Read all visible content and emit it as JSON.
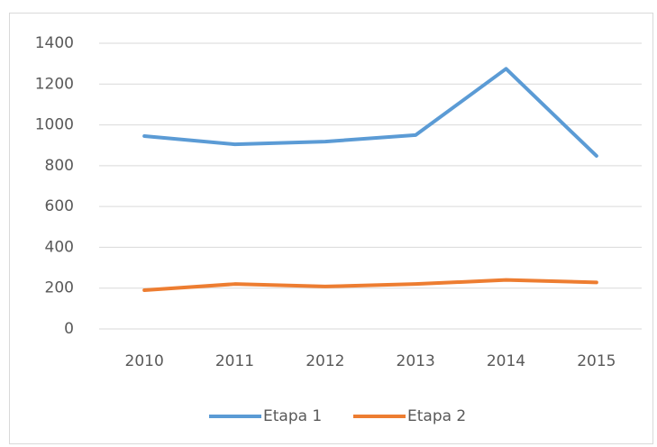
{
  "chart_data": {
    "type": "line",
    "categories": [
      "2010",
      "2011",
      "2012",
      "2013",
      "2014",
      "2015"
    ],
    "series": [
      {
        "name": "Etapa 1",
        "color": "#5b9bd5",
        "values": [
          945,
          905,
          918,
          950,
          1275,
          848
        ]
      },
      {
        "name": "Etapa 2",
        "color": "#ed7d31",
        "values": [
          190,
          220,
          208,
          220,
          240,
          228
        ]
      }
    ],
    "ylim": [
      0,
      1400
    ],
    "yticks": [
      0,
      200,
      400,
      600,
      800,
      1000,
      1200,
      1400
    ],
    "grid": true,
    "legend": "bottom"
  }
}
